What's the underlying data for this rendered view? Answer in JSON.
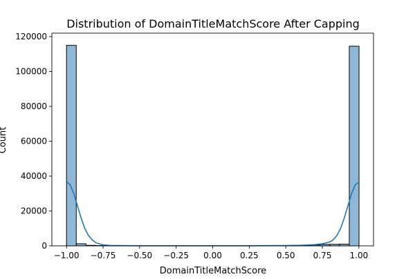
{
  "chart_data": {
    "type": "bar",
    "title": "Distribution of DomainTitleMatchScore After Capping",
    "xlabel": "DomainTitleMatchScore",
    "ylabel": "Count",
    "xlim": [
      -1.1,
      1.1
    ],
    "ylim": [
      0,
      122000
    ],
    "xticks": [
      -1.0,
      -0.75,
      -0.5,
      -0.25,
      0.0,
      0.25,
      0.5,
      0.75,
      1.0
    ],
    "xtick_labels": [
      "−1.00",
      "−0.75",
      "−0.50",
      "−0.25",
      "0.00",
      "0.25",
      "0.50",
      "0.75",
      "1.00"
    ],
    "yticks": [
      0,
      20000,
      40000,
      60000,
      80000,
      100000,
      120000
    ],
    "ytick_labels": [
      "0",
      "20000",
      "40000",
      "60000",
      "80000",
      "100000",
      "120000"
    ],
    "grid": false,
    "bins": {
      "start": -1.0,
      "width": 0.0667,
      "counts": [
        115000,
        1200,
        300,
        150,
        100,
        80,
        60,
        50,
        50,
        50,
        50,
        50,
        50,
        50,
        50,
        50,
        60,
        70,
        80,
        100,
        120,
        150,
        200,
        300,
        400,
        500,
        800,
        900,
        1000,
        114500
      ]
    },
    "kde": {
      "x": [
        -1.0,
        -0.975,
        -0.95,
        -0.925,
        -0.9,
        -0.875,
        -0.85,
        -0.825,
        -0.8,
        -0.75,
        -0.7,
        -0.6,
        -0.5,
        -0.25,
        0.0,
        0.25,
        0.5,
        0.6,
        0.7,
        0.75,
        0.8,
        0.825,
        0.85,
        0.875,
        0.9,
        0.925,
        0.95,
        0.975,
        1.0
      ],
      "y": [
        37000,
        35000,
        30000,
        23000,
        16000,
        10000,
        6000,
        3500,
        1800,
        600,
        250,
        120,
        80,
        60,
        60,
        80,
        200,
        350,
        700,
        1200,
        2200,
        3500,
        6000,
        10000,
        16000,
        23000,
        30000,
        35000,
        36500
      ]
    },
    "colors": {
      "bar_fill": "#8fb8d6",
      "bar_edge": "#000000",
      "kde_line": "#1f77b4"
    }
  }
}
